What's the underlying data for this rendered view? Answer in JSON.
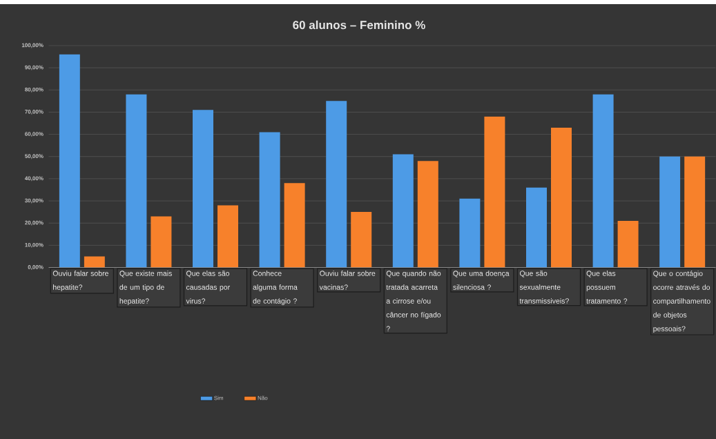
{
  "chart_data": {
    "type": "bar",
    "title": "60 alunos – Feminino %",
    "categories": [
      "Ouviu falar sobre hepatite?",
      "Que existe mais de um tipo de hepatite?",
      "Que elas são causadas por virus?",
      "Conhece alguma forma de contágio ?",
      "Ouviu falar sobre vacinas?",
      "Que quando não tratada acarreta a cirrose e/ou câncer no fígado ?",
      "Que uma doença silenciosa ?",
      "Que são sexualmente transmissiveis?",
      "Que elas possuem tratamento ?",
      "Que o contágio ocorre através do compartilhamento de objetos pessoais?"
    ],
    "series": [
      {
        "name": "Sim",
        "color": "#4d9be6",
        "values": [
          96,
          78,
          71,
          61,
          75,
          51,
          31,
          36,
          78,
          50
        ]
      },
      {
        "name": "Não",
        "color": "#f7812b",
        "values": [
          5,
          23,
          28,
          38,
          25,
          48,
          68,
          63,
          21,
          50
        ]
      }
    ],
    "ylim": [
      0,
      100
    ],
    "yticks": [
      {
        "value": 0,
        "label": "0,00%"
      },
      {
        "value": 10,
        "label": "10,00%"
      },
      {
        "value": 20,
        "label": "20,00%"
      },
      {
        "value": 30,
        "label": "30,00%"
      },
      {
        "value": 40,
        "label": "40,00%"
      },
      {
        "value": 50,
        "label": "50,00%"
      },
      {
        "value": 60,
        "label": "60,00%"
      },
      {
        "value": 70,
        "label": "70,00%"
      },
      {
        "value": 80,
        "label": "80,00%"
      },
      {
        "value": 90,
        "label": "90,00%"
      },
      {
        "value": 100,
        "label": "100,00%"
      }
    ],
    "grid": "y",
    "legend": "bottom"
  }
}
